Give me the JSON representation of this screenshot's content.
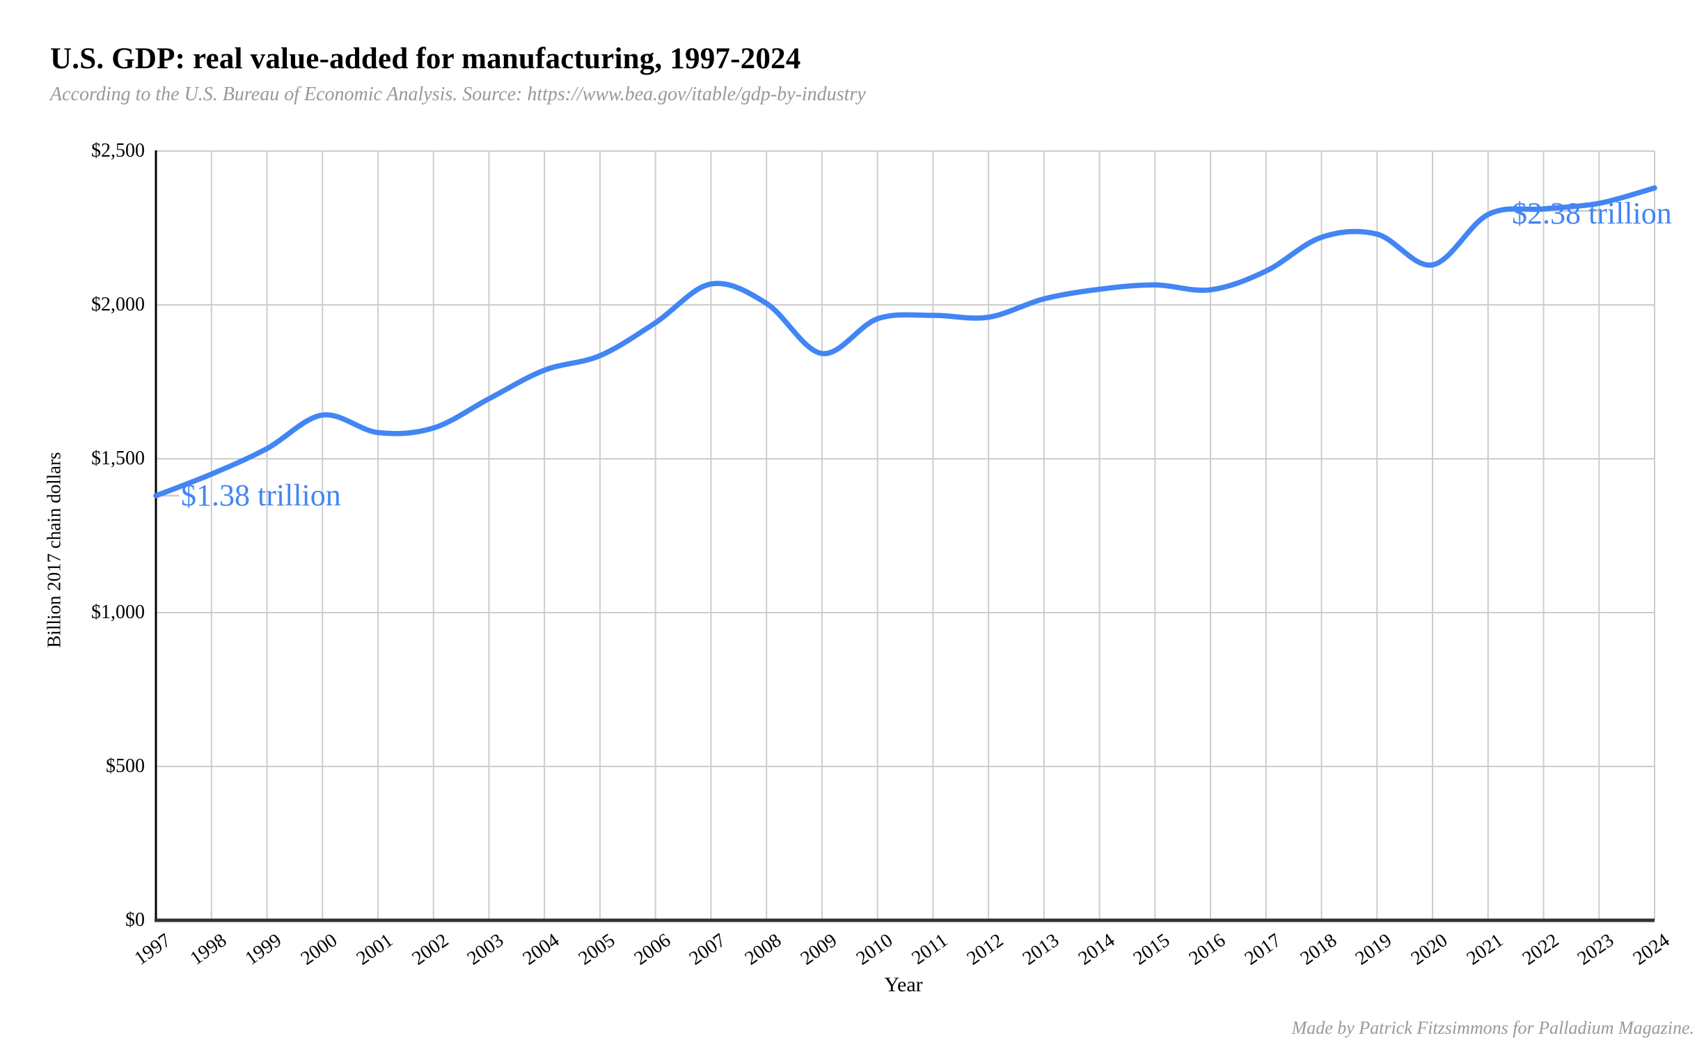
{
  "header": {
    "title": "U.S. GDP: real value-added for manufacturing, 1997-2024",
    "subtitle": "According to the U.S. Bureau of Economic Analysis. Source: https://www.bea.gov/itable/gdp-by-industry"
  },
  "footer": {
    "credit": "Made by Patrick Fitzsimmons for Palladium Magazine."
  },
  "chart_data": {
    "type": "line",
    "title": "U.S. GDP: real value-added for manufacturing, 1997-2024",
    "xlabel": "Year",
    "ylabel": "Billion 2017 chain dollars",
    "x": [
      1997,
      1998,
      1999,
      2000,
      2001,
      2002,
      2003,
      2004,
      2005,
      2006,
      2007,
      2008,
      2009,
      2010,
      2011,
      2012,
      2013,
      2014,
      2015,
      2016,
      2017,
      2018,
      2019,
      2020,
      2021,
      2022,
      2023,
      2024
    ],
    "values": [
      1380,
      1450,
      1533,
      1642,
      1585,
      1600,
      1695,
      1788,
      1835,
      1942,
      2068,
      2005,
      1842,
      1955,
      1966,
      1960,
      2020,
      2051,
      2065,
      2049,
      2110,
      2220,
      2230,
      2130,
      2294,
      2312,
      2330,
      2380
    ],
    "ylim": [
      0,
      2500
    ],
    "xlim": [
      1997,
      2024
    ],
    "grid": true,
    "legend": "none",
    "smooth": true,
    "line_color": "#4285F4",
    "grid_color": "#cccccc",
    "axis_color": "#333333",
    "y_ticks": [
      {
        "label": "$0",
        "value": 0
      },
      {
        "label": "$500",
        "value": 500
      },
      {
        "label": "$1,000",
        "value": 1000
      },
      {
        "label": "$1,500",
        "value": 1500
      },
      {
        "label": "$2,000",
        "value": 2000
      },
      {
        "label": "$2,500",
        "value": 2500
      }
    ],
    "x_ticks": [
      "1997",
      "1998",
      "1999",
      "2000",
      "2001",
      "2002",
      "2003",
      "2004",
      "2005",
      "2006",
      "2007",
      "2008",
      "2009",
      "2010",
      "2011",
      "2012",
      "2013",
      "2014",
      "2015",
      "2016",
      "2017",
      "2018",
      "2019",
      "2020",
      "2021",
      "2022",
      "2023",
      "2024"
    ],
    "annotations": [
      {
        "text": "$1.38 trillion",
        "year": 1997,
        "value": 1380
      },
      {
        "text": "$2.38 trillion",
        "year": 2024,
        "value": 2380
      }
    ]
  }
}
